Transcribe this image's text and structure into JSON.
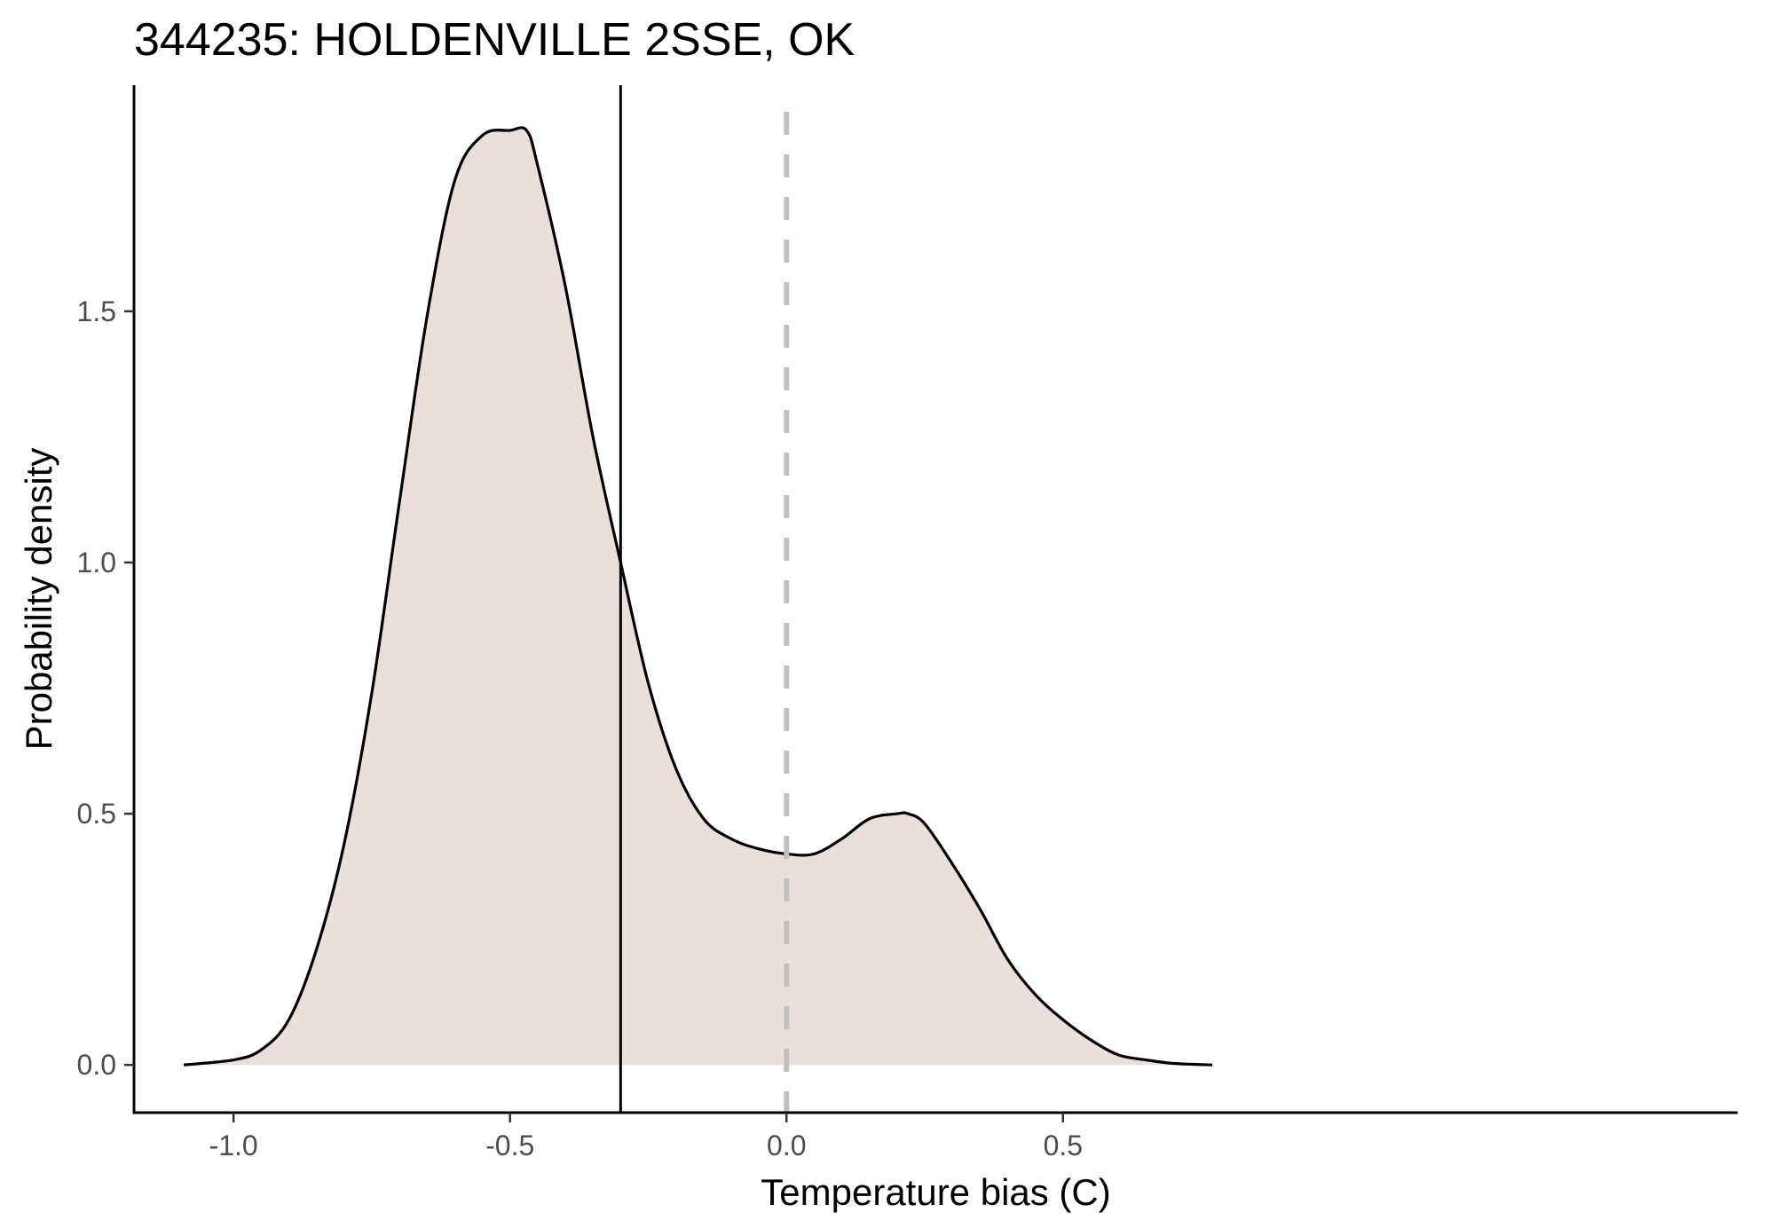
{
  "chart_data": {
    "type": "area",
    "title": "344235: HOLDENVILLE 2SSE, OK",
    "xlabel": "Temperature bias (C)",
    "ylabel": "Probability density",
    "xlim": [
      -1.18,
      1.72
    ],
    "ylim": [
      -0.095,
      1.95
    ],
    "x_ticks": [
      -1.0,
      -0.5,
      0.0,
      0.5
    ],
    "x_tick_labels": [
      "-1.0",
      "-0.5",
      "0.0",
      "0.5"
    ],
    "y_ticks": [
      0.0,
      0.5,
      1.0,
      1.5
    ],
    "y_tick_labels": [
      "0.0",
      "0.5",
      "1.0",
      "1.5"
    ],
    "grid": false,
    "series": [
      {
        "x": [
          -1.09,
          -1.0,
          -0.95,
          -0.9,
          -0.85,
          -0.8,
          -0.75,
          -0.7,
          -0.65,
          -0.6,
          -0.55,
          -0.5,
          -0.47,
          -0.45,
          -0.4,
          -0.35,
          -0.3,
          -0.25,
          -0.2,
          -0.15,
          -0.1,
          -0.05,
          0.0,
          0.05,
          0.1,
          0.15,
          0.2,
          0.22,
          0.25,
          0.3,
          0.35,
          0.4,
          0.45,
          0.5,
          0.55,
          0.6,
          0.65,
          0.7,
          0.77
        ],
        "y": [
          0.0,
          0.01,
          0.03,
          0.09,
          0.23,
          0.44,
          0.74,
          1.12,
          1.49,
          1.76,
          1.85,
          1.86,
          1.86,
          1.79,
          1.55,
          1.25,
          1.0,
          0.76,
          0.59,
          0.49,
          0.45,
          0.43,
          0.42,
          0.42,
          0.45,
          0.49,
          0.5,
          0.5,
          0.48,
          0.4,
          0.31,
          0.21,
          0.14,
          0.09,
          0.05,
          0.02,
          0.01,
          0.003,
          0.0
        ]
      }
    ],
    "reference_lines": [
      {
        "x": -0.3,
        "style": "solid"
      },
      {
        "x": 0.0,
        "style": "dashed"
      }
    ],
    "colors": {
      "fill": "#ebdfdc",
      "curve": "#000000",
      "mean_line": "#000000",
      "zero_line": "#bfbfbf",
      "axis": "#000000"
    }
  }
}
